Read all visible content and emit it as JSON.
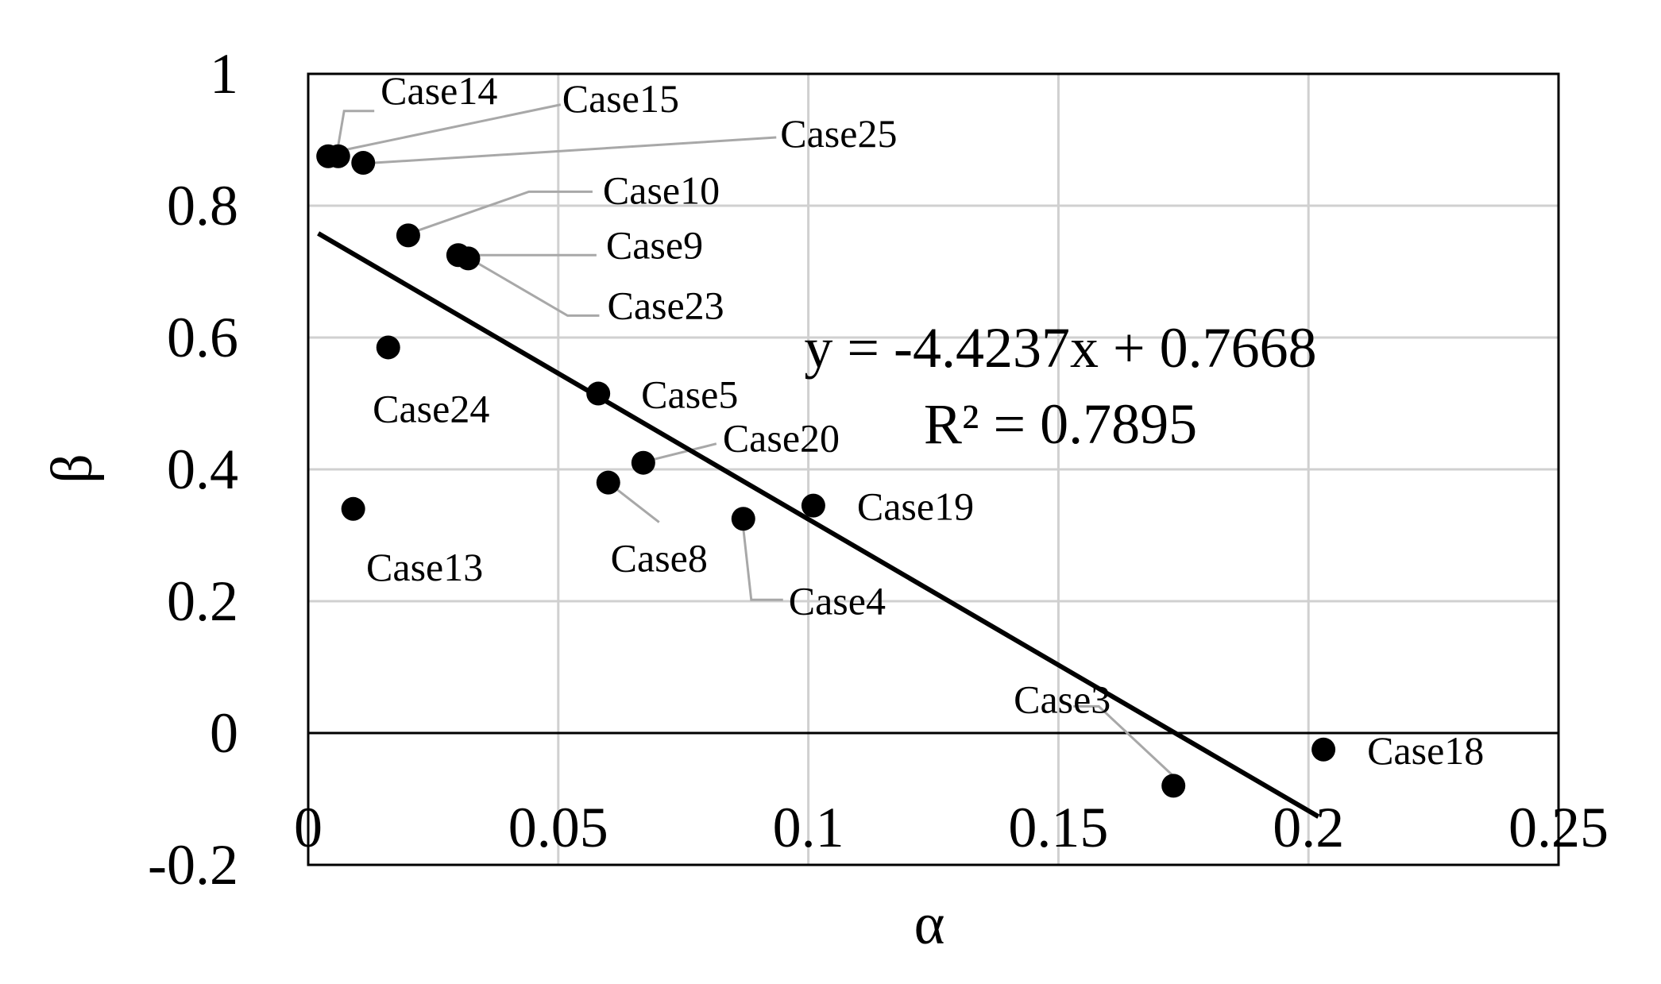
{
  "chart_data": {
    "type": "scatter",
    "xlabel": "α",
    "ylabel": "β",
    "xlim": [
      0,
      0.25
    ],
    "ylim": [
      -0.2,
      1
    ],
    "x_ticks": [
      "0",
      "0.05",
      "0.1",
      "0.15",
      "0.2",
      "0.25"
    ],
    "y_ticks": [
      "1",
      "0.8",
      "0.6",
      "0.4",
      "0.2",
      "0",
      "-0.2"
    ],
    "grid": true,
    "points": [
      {
        "label": "Case14",
        "x": 0.004,
        "y": 0.875
      },
      {
        "label": "Case15",
        "x": 0.006,
        "y": 0.875
      },
      {
        "label": "Case25",
        "x": 0.011,
        "y": 0.865
      },
      {
        "label": "Case10",
        "x": 0.02,
        "y": 0.755
      },
      {
        "label": "Case9",
        "x": 0.03,
        "y": 0.725
      },
      {
        "label": "Case23",
        "x": 0.032,
        "y": 0.72
      },
      {
        "label": "Case24",
        "x": 0.016,
        "y": 0.585
      },
      {
        "label": "Case5",
        "x": 0.058,
        "y": 0.515
      },
      {
        "label": "Case20",
        "x": 0.067,
        "y": 0.41
      },
      {
        "label": "Case8",
        "x": 0.06,
        "y": 0.38
      },
      {
        "label": "Case13",
        "x": 0.009,
        "y": 0.34
      },
      {
        "label": "Case19",
        "x": 0.101,
        "y": 0.345
      },
      {
        "label": "Case4",
        "x": 0.087,
        "y": 0.325
      },
      {
        "label": "Case3",
        "x": 0.173,
        "y": -0.08
      },
      {
        "label": "Case18",
        "x": 0.203,
        "y": -0.025
      }
    ],
    "trendline": {
      "slope": -4.4237,
      "intercept": 0.7668,
      "x_range": [
        0.002,
        0.202
      ],
      "equation": "y = -4.4237x + 0.7668",
      "r2": "R² = 0.7895"
    }
  }
}
